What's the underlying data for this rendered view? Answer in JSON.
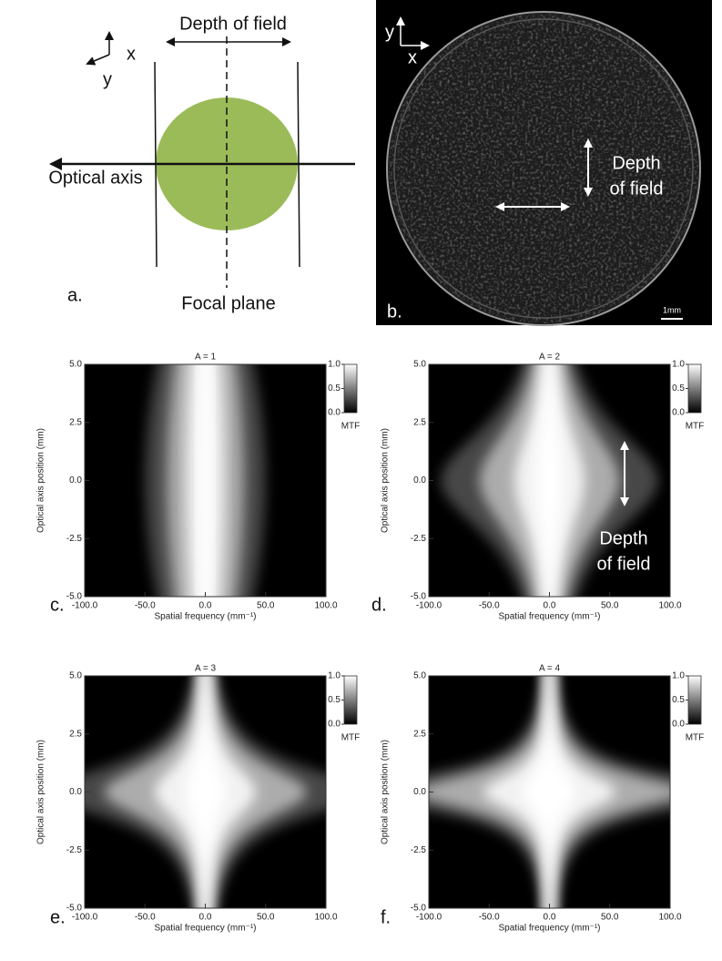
{
  "panel_a": {
    "label": "a.",
    "depth_of_field": "Depth of field",
    "axis_x": "x",
    "axis_y": "y",
    "optical_axis": "Optical axis",
    "focal_plane": "Focal plane"
  },
  "panel_b": {
    "label": "b.",
    "axis_x": "x",
    "axis_y": "y",
    "depth_of_field": [
      "Depth",
      "of field"
    ],
    "scale_bar": "1mm"
  },
  "maps": {
    "x_label": "Spatial frequency (mm⁻¹)",
    "y_label": "Optical axis position (mm)",
    "xlim": [
      -100,
      100
    ],
    "ylim": [
      -5,
      5
    ],
    "xticks": [
      {
        "value": -100,
        "label": "-100.0"
      },
      {
        "value": -50,
        "label": "-50.0"
      },
      {
        "value": 0,
        "label": "0.0"
      },
      {
        "value": 50,
        "label": "50.0"
      },
      {
        "value": 100,
        "label": "100.0"
      }
    ],
    "yticks": [
      {
        "value": -5,
        "label": "-5.0"
      },
      {
        "value": -2.5,
        "label": "-2.5"
      },
      {
        "value": 0,
        "label": "0.0"
      },
      {
        "value": 2.5,
        "label": "2.5"
      },
      {
        "value": 5,
        "label": "5.0"
      }
    ],
    "colorbar_label": "MTF",
    "colorbar_lim": [
      0,
      1
    ],
    "colorbar_ticks": [
      {
        "value": 0,
        "label": "0.0"
      },
      {
        "value": 0.5,
        "label": "0.5"
      },
      {
        "value": 1,
        "label": "1.0"
      }
    ],
    "panels": [
      {
        "label": "c.",
        "title": "A = 1",
        "A": 1
      },
      {
        "label": "d.",
        "title": "A = 2",
        "A": 2,
        "annotation": [
          "Depth",
          "of field"
        ]
      },
      {
        "label": "e.",
        "title": "A = 3",
        "A": 3
      },
      {
        "label": "f.",
        "title": "A = 4",
        "A": 4
      }
    ]
  }
}
